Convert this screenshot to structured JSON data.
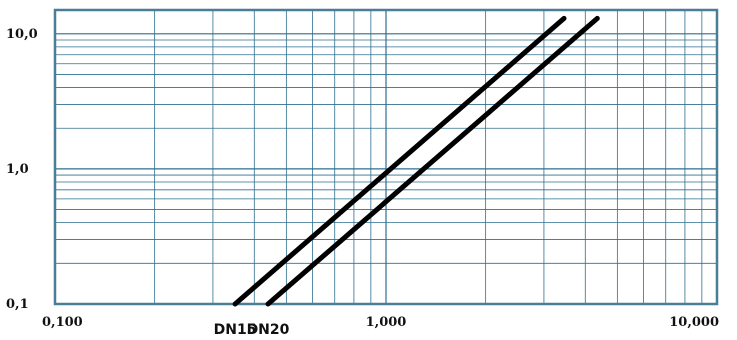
{
  "chart_data": {
    "type": "line",
    "title": "",
    "xlabel": "",
    "ylabel": "",
    "x_scale": "log",
    "y_scale": "log",
    "xlim": [
      0.1,
      10
    ],
    "ylim": [
      0.1,
      15
    ],
    "grid": true,
    "x_ticks": [
      {
        "value": 0.1,
        "label": "0,100"
      },
      {
        "value": 1,
        "label": "1,000"
      },
      {
        "value": 10,
        "label": "10,000"
      }
    ],
    "y_ticks": [
      {
        "value": 0.1,
        "label": "0,1"
      },
      {
        "value": 1,
        "label": "1,0"
      },
      {
        "value": 10,
        "label": "10,0"
      }
    ],
    "series": [
      {
        "name": "DN15",
        "x": [
          0.35,
          3.45
        ],
        "y": [
          0.1,
          13
        ]
      },
      {
        "name": "DN20",
        "x": [
          0.44,
          4.35
        ],
        "y": [
          0.1,
          13
        ]
      }
    ],
    "grid_color": "#2e6f8f",
    "frame_color": "#4a7d96",
    "line_color": "#000000"
  }
}
